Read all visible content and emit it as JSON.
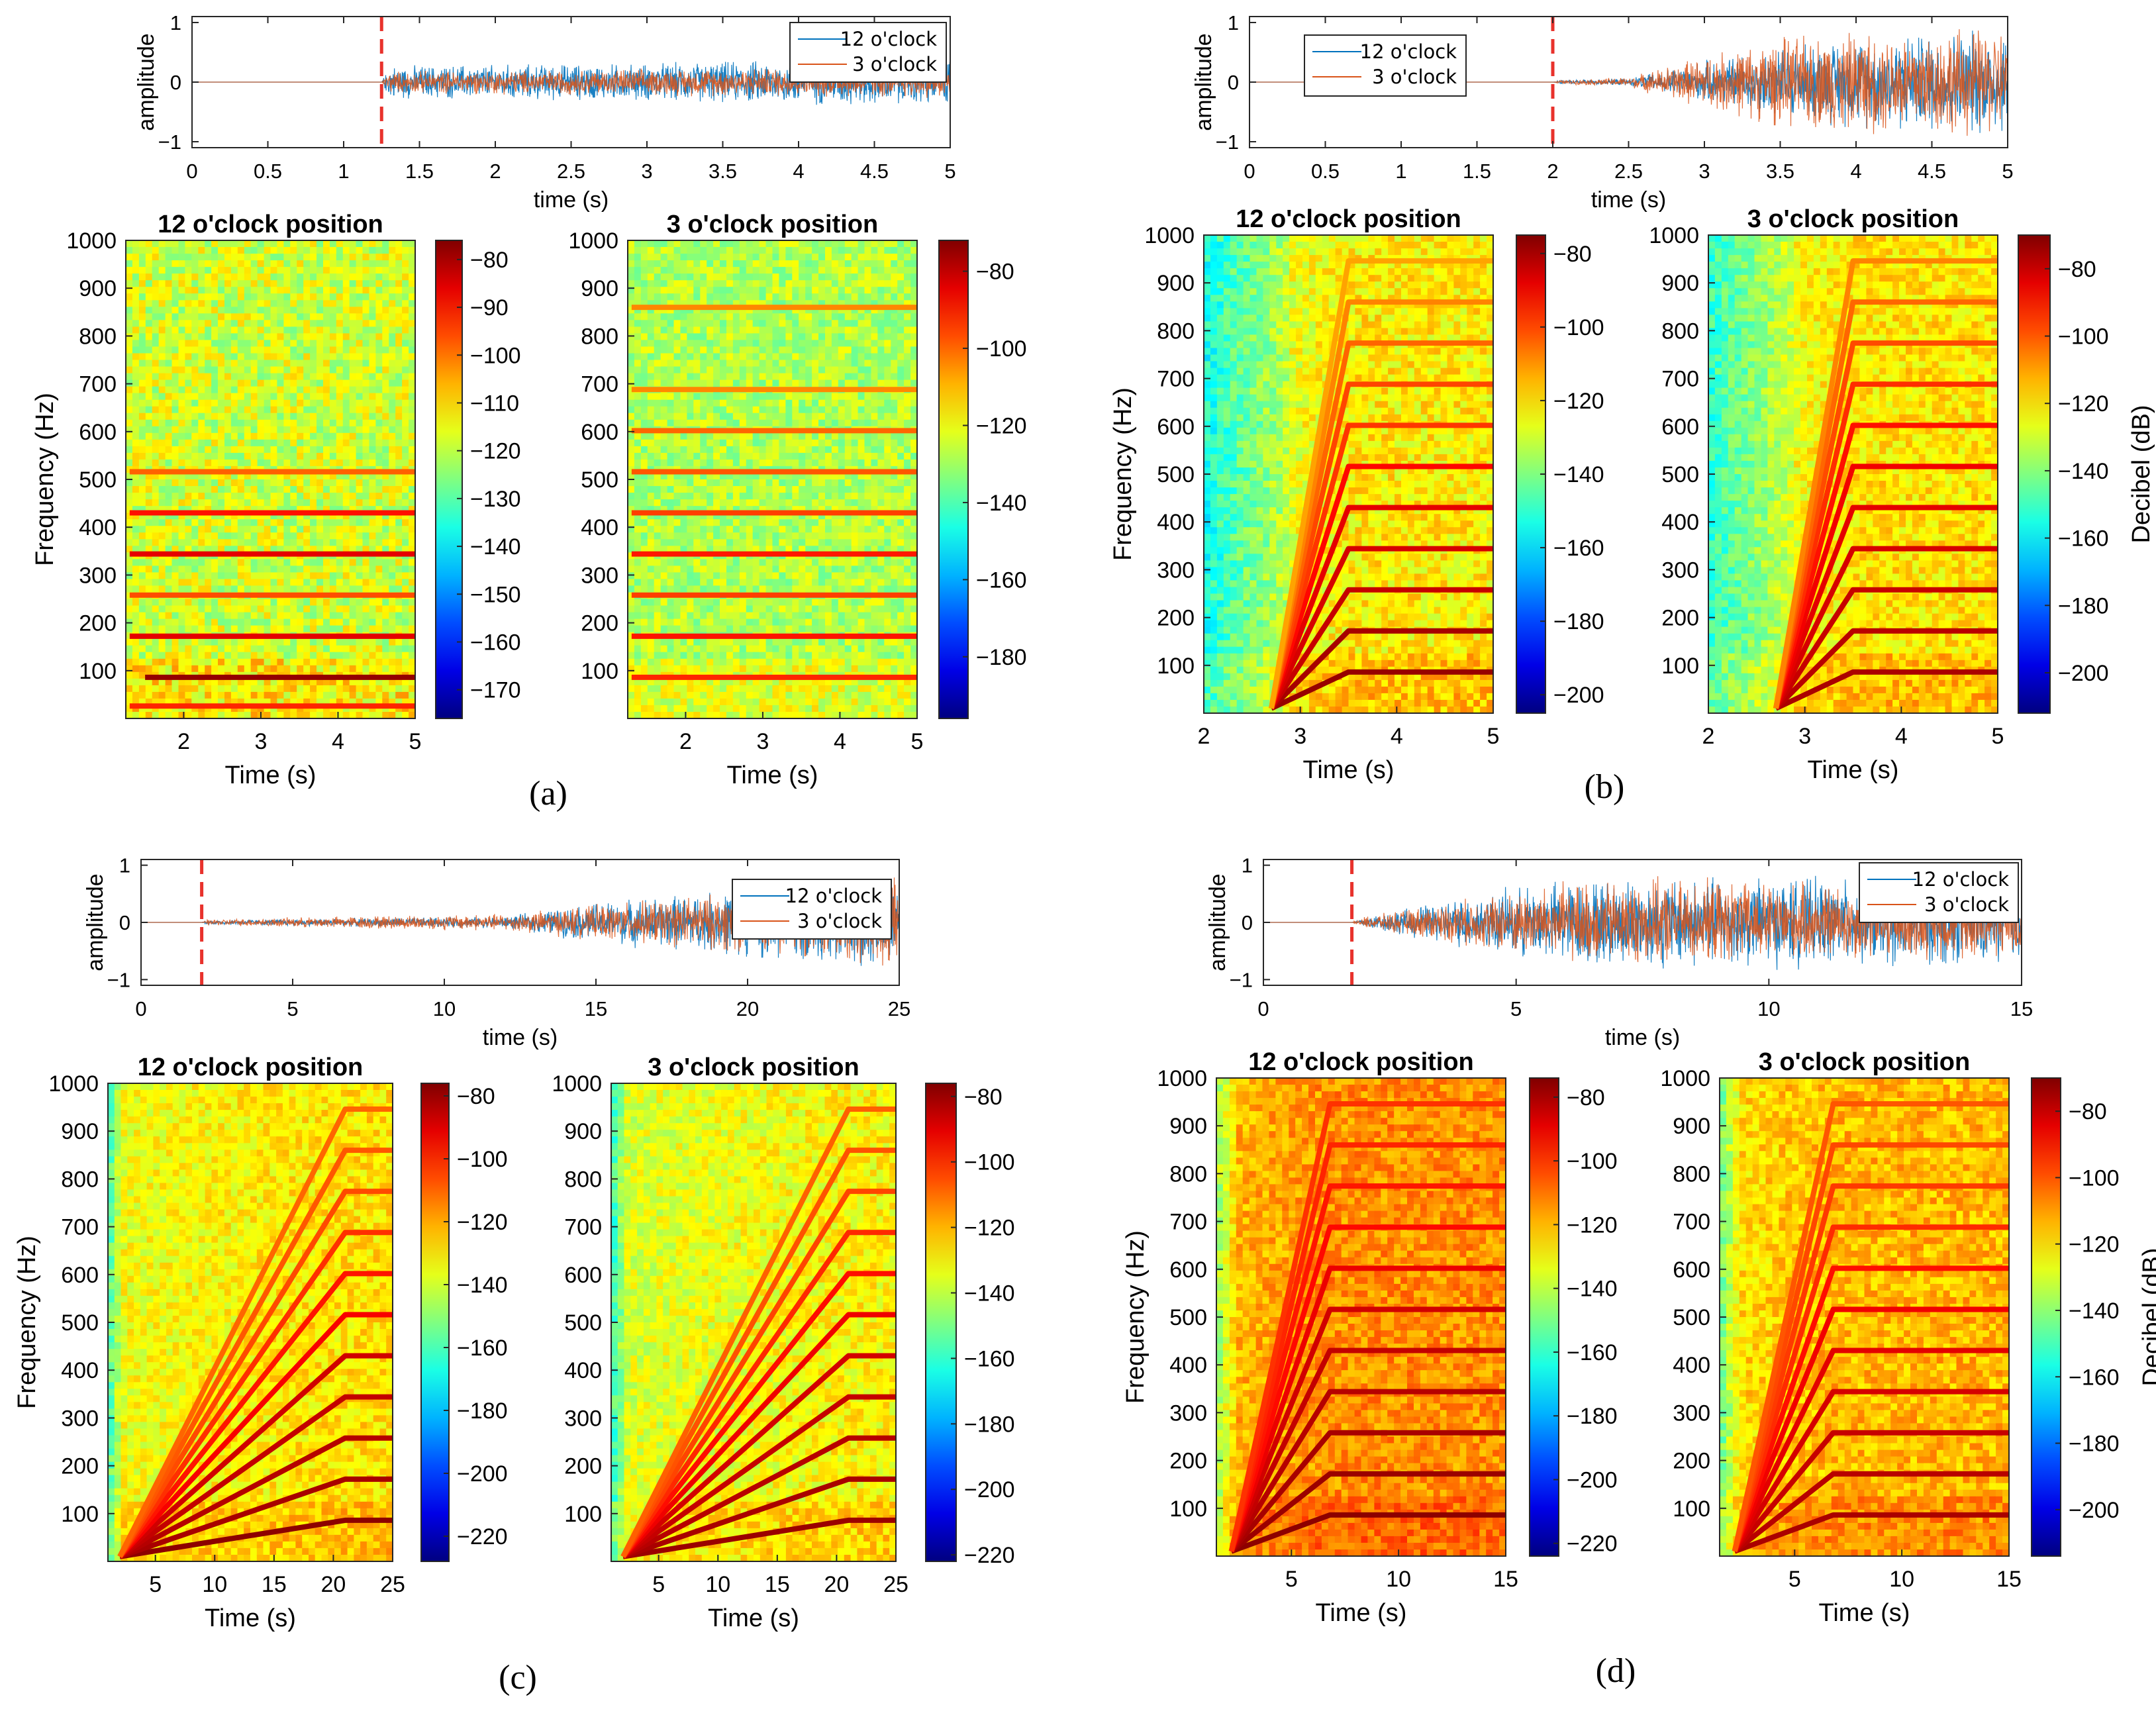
{
  "chart_data": [
    {
      "panel": "(a)",
      "type": "line",
      "xlabel": "time (s)",
      "ylabel": "amplitude",
      "xlim": [
        0,
        5
      ],
      "ylim": [
        -1.1,
        1.1
      ],
      "xticks": [
        0,
        0.5,
        1,
        1.5,
        2,
        2.5,
        3,
        3.5,
        4,
        4.5,
        5
      ],
      "yticks": [
        -1,
        0,
        1
      ],
      "onset": 1.25,
      "series": [
        {
          "name": "12 o'clock",
          "color": "#0072BD",
          "envelope": [
            [
              0,
              0
            ],
            [
              1.25,
              0
            ],
            [
              1.3,
              0.28
            ],
            [
              2,
              0.3
            ],
            [
              3,
              0.32
            ],
            [
              4,
              0.38
            ],
            [
              5,
              0.42
            ]
          ]
        },
        {
          "name": "3 o'clock",
          "color": "#D95319",
          "envelope": [
            [
              0,
              0
            ],
            [
              1.25,
              0
            ],
            [
              1.3,
              0.18
            ],
            [
              2,
              0.2
            ],
            [
              3,
              0.22
            ],
            [
              4,
              0.25
            ],
            [
              5,
              0.27
            ]
          ]
        }
      ],
      "legend": "top-right"
    },
    {
      "panel": "(a)",
      "type": "heatmap",
      "title": "12 o'clock position",
      "xlabel": "Time (s)",
      "ylabel": "Frequency (Hz)",
      "xlim": [
        1.25,
        5
      ],
      "ylim": [
        0,
        1000
      ],
      "xticks": [
        2,
        3,
        4,
        5
      ],
      "yticks": [
        100,
        200,
        300,
        400,
        500,
        600,
        700,
        800,
        900,
        1000
      ],
      "colorbar": {
        "range": [
          -176,
          -76
        ],
        "ticks": [
          -80,
          -90,
          -100,
          -110,
          -120,
          -130,
          -140,
          -150,
          -160,
          -170
        ],
        "label": ""
      },
      "background_db": -118,
      "harmonics": [
        {
          "f": 86,
          "t0": 1.5,
          "db": -78
        },
        {
          "f": 172,
          "t0": 1.3,
          "db": -86
        },
        {
          "f": 258,
          "t0": 1.3,
          "db": -96
        },
        {
          "f": 344,
          "t0": 1.3,
          "db": -86
        },
        {
          "f": 430,
          "t0": 1.3,
          "db": -90
        },
        {
          "f": 516,
          "t0": 1.3,
          "db": -98
        },
        {
          "f": 26,
          "t0": 1.3,
          "db": -92
        }
      ]
    },
    {
      "panel": "(a)",
      "type": "heatmap",
      "title": "3 o'clock position",
      "xlabel": "Time (s)",
      "ylabel": "",
      "xlim": [
        1.25,
        5
      ],
      "ylim": [
        0,
        1000
      ],
      "xticks": [
        2,
        3,
        4,
        5
      ],
      "yticks": [
        100,
        200,
        300,
        400,
        500,
        600,
        700,
        800,
        900,
        1000
      ],
      "colorbar": {
        "range": [
          -196,
          -72
        ],
        "ticks": [
          -80,
          -100,
          -120,
          -140,
          -160,
          -180
        ],
        "label": ""
      },
      "background_db": -128,
      "harmonics": [
        {
          "f": 86,
          "t0": 1.3,
          "db": -92
        },
        {
          "f": 172,
          "t0": 1.3,
          "db": -90
        },
        {
          "f": 258,
          "t0": 1.3,
          "db": -95
        },
        {
          "f": 344,
          "t0": 1.3,
          "db": -90
        },
        {
          "f": 430,
          "t0": 1.3,
          "db": -95
        },
        {
          "f": 516,
          "t0": 1.3,
          "db": -98
        },
        {
          "f": 602,
          "t0": 1.3,
          "db": -100
        },
        {
          "f": 688,
          "t0": 1.3,
          "db": -104
        },
        {
          "f": 860,
          "t0": 1.3,
          "db": -104
        }
      ]
    },
    {
      "panel": "(b)",
      "type": "line",
      "xlabel": "time (s)",
      "ylabel": "amplitude",
      "xlim": [
        0,
        5
      ],
      "ylim": [
        -1.1,
        1.1
      ],
      "xticks": [
        0,
        0.5,
        1,
        1.5,
        2,
        2.5,
        3,
        3.5,
        4,
        4.5,
        5
      ],
      "yticks": [
        -1,
        0,
        1
      ],
      "onset": 2,
      "series": [
        {
          "name": "12 o'clock",
          "color": "#0072BD",
          "envelope": [
            [
              0,
              0
            ],
            [
              2,
              0
            ],
            [
              2.05,
              0.03
            ],
            [
              2.5,
              0.06
            ],
            [
              3,
              0.35
            ],
            [
              3.5,
              0.6
            ],
            [
              4,
              0.75
            ],
            [
              4.5,
              0.85
            ],
            [
              5,
              0.9
            ]
          ]
        },
        {
          "name": "3 o'clock",
          "color": "#D95319",
          "envelope": [
            [
              0,
              0
            ],
            [
              2,
              0
            ],
            [
              2.05,
              0.03
            ],
            [
              2.5,
              0.08
            ],
            [
              3,
              0.45
            ],
            [
              3.5,
              0.75
            ],
            [
              4,
              0.85
            ],
            [
              4.5,
              0.9
            ],
            [
              5,
              0.92
            ]
          ]
        }
      ],
      "legend": "top-left"
    },
    {
      "panel": "(b)",
      "type": "heatmap",
      "title": "12 o'clock position",
      "xlabel": "Time (s)",
      "ylabel": "Frequency (Hz)",
      "xlim": [
        2,
        5
      ],
      "ylim": [
        0,
        1000
      ],
      "xticks": [
        2,
        3,
        4,
        5
      ],
      "yticks": [
        100,
        200,
        300,
        400,
        500,
        600,
        700,
        800,
        900,
        1000
      ],
      "colorbar": {
        "range": [
          -205,
          -75
        ],
        "ticks": [
          -80,
          -100,
          -120,
          -140,
          -160,
          -180,
          -200
        ],
        "label": ""
      },
      "background_db": -128,
      "ramp": {
        "t_start": 2.7,
        "t_end": 3.5
      },
      "harmonics": [
        {
          "f": 86,
          "db": -78
        },
        {
          "f": 172,
          "db": -80
        },
        {
          "f": 258,
          "db": -84
        },
        {
          "f": 344,
          "db": -86
        },
        {
          "f": 430,
          "db": -88
        },
        {
          "f": 516,
          "db": -92
        },
        {
          "f": 602,
          "db": -98
        },
        {
          "f": 688,
          "db": -100
        },
        {
          "f": 774,
          "db": -104
        },
        {
          "f": 860,
          "db": -108
        },
        {
          "f": 946,
          "db": -112
        }
      ]
    },
    {
      "panel": "(b)",
      "type": "heatmap",
      "title": "3 o'clock position",
      "xlabel": "Time (s)",
      "ylabel": "",
      "xlim": [
        2,
        5
      ],
      "ylim": [
        0,
        1000
      ],
      "xticks": [
        2,
        3,
        4,
        5
      ],
      "yticks": [
        100,
        200,
        300,
        400,
        500,
        600,
        700,
        800,
        900,
        1000
      ],
      "colorbar": {
        "range": [
          -212,
          -70
        ],
        "ticks": [
          -80,
          -100,
          -120,
          -140,
          -160,
          -180,
          -200
        ],
        "label": "Decibel (dB)"
      },
      "background_db": -126,
      "ramp": {
        "t_start": 2.7,
        "t_end": 3.5
      },
      "harmonics": [
        {
          "f": 86,
          "db": -76
        },
        {
          "f": 172,
          "db": -78
        },
        {
          "f": 258,
          "db": -80
        },
        {
          "f": 344,
          "db": -82
        },
        {
          "f": 430,
          "db": -84
        },
        {
          "f": 516,
          "db": -86
        },
        {
          "f": 602,
          "db": -90
        },
        {
          "f": 688,
          "db": -94
        },
        {
          "f": 774,
          "db": -98
        },
        {
          "f": 860,
          "db": -102
        },
        {
          "f": 946,
          "db": -106
        }
      ]
    },
    {
      "panel": "(c)",
      "type": "line",
      "xlabel": "time (s)",
      "ylabel": "amplitude",
      "xlim": [
        0,
        25
      ],
      "ylim": [
        -1.1,
        1.1
      ],
      "xticks": [
        0,
        5,
        10,
        15,
        20,
        25
      ],
      "yticks": [
        -1,
        0,
        1
      ],
      "onset": 2,
      "series": [
        {
          "name": "12 o'clock",
          "color": "#0072BD",
          "envelope": [
            [
              0,
              0
            ],
            [
              2,
              0
            ],
            [
              2.2,
              0.04
            ],
            [
              8,
              0.08
            ],
            [
              12,
              0.1
            ],
            [
              15,
              0.35
            ],
            [
              20,
              0.6
            ],
            [
              25,
              0.8
            ]
          ]
        },
        {
          "name": "3 o'clock",
          "color": "#D95319",
          "envelope": [
            [
              0,
              0
            ],
            [
              2,
              0
            ],
            [
              2.2,
              0.05
            ],
            [
              8,
              0.12
            ],
            [
              12,
              0.15
            ],
            [
              15,
              0.3
            ],
            [
              20,
              0.55
            ],
            [
              25,
              0.75
            ]
          ]
        }
      ],
      "legend": "top-right"
    },
    {
      "panel": "(c)",
      "type": "heatmap",
      "title": "12 o'clock position",
      "xlabel": "Time (s)",
      "ylabel": "Frequency (Hz)",
      "xlim": [
        1,
        25
      ],
      "ylim": [
        0,
        1000
      ],
      "xticks": [
        5,
        10,
        15,
        20,
        25
      ],
      "yticks": [
        100,
        200,
        300,
        400,
        500,
        600,
        700,
        800,
        900,
        1000
      ],
      "colorbar": {
        "range": [
          -228,
          -76
        ],
        "ticks": [
          -80,
          -100,
          -120,
          -140,
          -160,
          -180,
          -200,
          -220
        ],
        "label": ""
      },
      "background_db": -135,
      "ramp": {
        "t_start": 2,
        "t_end": 21
      },
      "harmonics": [
        {
          "f": 86,
          "db": -78
        },
        {
          "f": 172,
          "db": -82
        },
        {
          "f": 258,
          "db": -84
        },
        {
          "f": 344,
          "db": -86
        },
        {
          "f": 430,
          "db": -88
        },
        {
          "f": 516,
          "db": -94
        },
        {
          "f": 602,
          "db": -98
        },
        {
          "f": 688,
          "db": -102
        },
        {
          "f": 774,
          "db": -106
        },
        {
          "f": 860,
          "db": -108
        },
        {
          "f": 946,
          "db": -110
        }
      ]
    },
    {
      "panel": "(c)",
      "type": "heatmap",
      "title": "3 o'clock position",
      "xlabel": "Time (s)",
      "ylabel": "",
      "xlim": [
        1,
        25
      ],
      "ylim": [
        0,
        1000
      ],
      "xticks": [
        5,
        10,
        15,
        20,
        25
      ],
      "yticks": [
        100,
        200,
        300,
        400,
        500,
        600,
        700,
        800,
        900,
        1000
      ],
      "colorbar": {
        "range": [
          -222,
          -76
        ],
        "ticks": [
          -80,
          -100,
          -120,
          -140,
          -160,
          -180,
          -200,
          -220
        ],
        "label": ""
      },
      "background_db": -136,
      "ramp": {
        "t_start": 2,
        "t_end": 21
      },
      "harmonics": [
        {
          "f": 86,
          "db": -80
        },
        {
          "f": 172,
          "db": -82
        },
        {
          "f": 258,
          "db": -84
        },
        {
          "f": 344,
          "db": -86
        },
        {
          "f": 430,
          "db": -88
        },
        {
          "f": 516,
          "db": -92
        },
        {
          "f": 602,
          "db": -96
        },
        {
          "f": 688,
          "db": -100
        },
        {
          "f": 774,
          "db": -104
        },
        {
          "f": 860,
          "db": -106
        },
        {
          "f": 946,
          "db": -108
        }
      ]
    },
    {
      "panel": "(d)",
      "type": "line",
      "xlabel": "time (s)",
      "ylabel": "amplitude",
      "xlim": [
        0,
        15
      ],
      "ylim": [
        -1.1,
        1.1
      ],
      "xticks": [
        0,
        5,
        10,
        15
      ],
      "yticks": [
        -1,
        0,
        1
      ],
      "onset": 1.75,
      "series": [
        {
          "name": "12 o'clock",
          "color": "#0072BD",
          "envelope": [
            [
              0,
              0
            ],
            [
              1.75,
              0
            ],
            [
              2,
              0.1
            ],
            [
              4,
              0.45
            ],
            [
              6,
              0.75
            ],
            [
              8,
              0.8
            ],
            [
              10,
              0.78
            ],
            [
              12,
              0.75
            ],
            [
              15,
              0.75
            ]
          ]
        },
        {
          "name": "3 o'clock",
          "color": "#D95319",
          "envelope": [
            [
              0,
              0
            ],
            [
              1.75,
              0
            ],
            [
              2,
              0.1
            ],
            [
              4,
              0.4
            ],
            [
              6,
              0.7
            ],
            [
              8,
              0.75
            ],
            [
              10,
              0.7
            ],
            [
              12,
              0.65
            ],
            [
              15,
              0.6
            ]
          ]
        }
      ],
      "legend": "top-right"
    },
    {
      "panel": "(d)",
      "type": "heatmap",
      "title": "12 o'clock position",
      "xlabel": "Time (s)",
      "ylabel": "Frequency (Hz)",
      "xlim": [
        1.5,
        15
      ],
      "ylim": [
        0,
        1000
      ],
      "xticks": [
        5,
        10,
        15
      ],
      "yticks": [
        100,
        200,
        300,
        400,
        500,
        600,
        700,
        800,
        900,
        1000
      ],
      "colorbar": {
        "range": [
          -224,
          -74
        ],
        "ticks": [
          -80,
          -100,
          -120,
          -140,
          -160,
          -180,
          -200,
          -220
        ],
        "label": ""
      },
      "background_db": -120,
      "ramp": {
        "t_start": 2.2,
        "t_end": 6.8
      },
      "harmonics": [
        {
          "f": 86,
          "db": -76
        },
        {
          "f": 172,
          "db": -78
        },
        {
          "f": 258,
          "db": -80
        },
        {
          "f": 344,
          "db": -82
        },
        {
          "f": 430,
          "db": -84
        },
        {
          "f": 516,
          "db": -86
        },
        {
          "f": 602,
          "db": -90
        },
        {
          "f": 688,
          "db": -94
        },
        {
          "f": 774,
          "db": -96
        },
        {
          "f": 860,
          "db": -98
        },
        {
          "f": 946,
          "db": -100
        }
      ]
    },
    {
      "panel": "(d)",
      "type": "heatmap",
      "title": "3 o'clock position",
      "xlabel": "Time (s)",
      "ylabel": "",
      "xlim": [
        1.5,
        15
      ],
      "ylim": [
        0,
        1000
      ],
      "xticks": [
        5,
        10,
        15
      ],
      "yticks": [
        100,
        200,
        300,
        400,
        500,
        600,
        700,
        800,
        900,
        1000
      ],
      "colorbar": {
        "range": [
          -214,
          -70
        ],
        "ticks": [
          -80,
          -100,
          -120,
          -140,
          -160,
          -180,
          -200
        ],
        "label": "Decibel (dB)"
      },
      "background_db": -120,
      "ramp": {
        "t_start": 2.2,
        "t_end": 6.8
      },
      "harmonics": [
        {
          "f": 86,
          "db": -76
        },
        {
          "f": 172,
          "db": -78
        },
        {
          "f": 258,
          "db": -80
        },
        {
          "f": 344,
          "db": -82
        },
        {
          "f": 430,
          "db": -84
        },
        {
          "f": 516,
          "db": -86
        },
        {
          "f": 602,
          "db": -90
        },
        {
          "f": 688,
          "db": -94
        },
        {
          "f": 774,
          "db": -96
        },
        {
          "f": 860,
          "db": -98
        },
        {
          "f": 946,
          "db": -100
        }
      ]
    }
  ],
  "panel_labels": [
    "(a)",
    "(b)",
    "(c)",
    "(d)"
  ]
}
